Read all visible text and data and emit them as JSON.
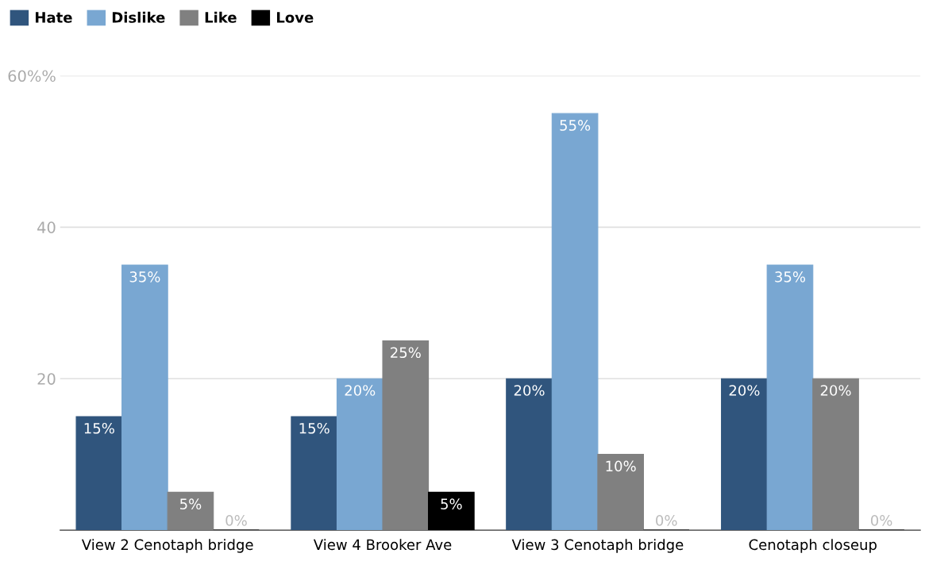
{
  "chart_data": {
    "type": "bar",
    "categories": [
      "View 2 Cenotaph bridge",
      "View 4 Brooker Ave",
      "View 3 Cenotaph bridge",
      "Cenotaph closeup"
    ],
    "series": [
      {
        "name": "Hate",
        "color": "#30557d",
        "values": [
          15,
          15,
          20,
          20
        ],
        "value_labels": [
          "15%",
          "15%",
          "20%",
          "20%"
        ]
      },
      {
        "name": "Dislike",
        "color": "#79a7d2",
        "values": [
          35,
          20,
          55,
          35
        ],
        "value_labels": [
          "35%",
          "20%",
          "55%",
          "35%"
        ]
      },
      {
        "name": "Like",
        "color": "#808080",
        "values": [
          5,
          25,
          10,
          20
        ],
        "value_labels": [
          "5%",
          "25%",
          "10%",
          "20%"
        ]
      },
      {
        "name": "Love",
        "color": "#000000",
        "values": [
          0,
          5,
          0,
          0
        ],
        "value_labels": [
          "0%",
          "5%",
          "0%",
          "0%"
        ]
      }
    ],
    "ylim": [
      0,
      60
    ],
    "yticks": [
      20,
      40,
      {
        "value": 60,
        "label": "60%%"
      }
    ],
    "grid": "y",
    "legend": "top left"
  }
}
